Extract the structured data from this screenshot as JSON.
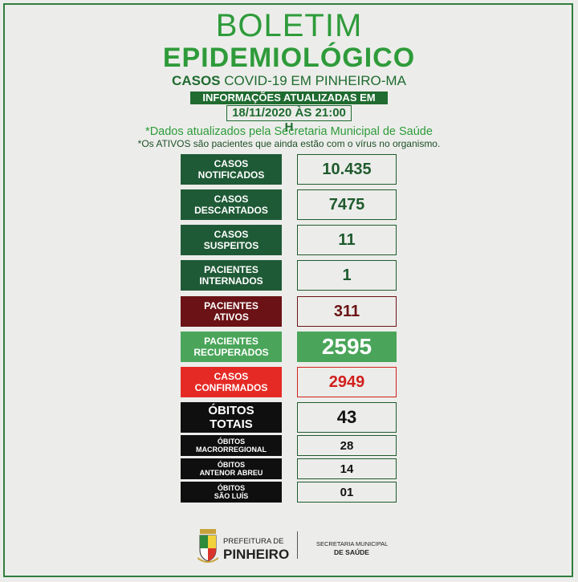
{
  "header": {
    "title_line1": "BOLETIM",
    "title_line2": "EPIDEMIOLÓGICO",
    "subtitle_bold": "CASOS",
    "subtitle_rest": " COVID-19 EM PINHEIRO-MA",
    "info_label": "INFORMAÇÕES ATUALIZADAS EM",
    "info_date": "18/11/2020 ÀS 21:00 H"
  },
  "notes": {
    "line1": "*Dados atualizados pela Secretaria Municipal de Saúde",
    "line2": "*Os ATIVOS são pacientes que ainda estão com o vírus no organismo."
  },
  "rows": [
    {
      "label1": "CASOS",
      "label2": "NOTIFICADOS",
      "value": "10.435",
      "color": "#1f5a36",
      "value_color": "#1f5a2e"
    },
    {
      "label1": "CASOS",
      "label2": "DESCARTADOS",
      "value": "7475",
      "color": "#1f5a36",
      "value_color": "#1f5a2e"
    },
    {
      "label1": "CASOS",
      "label2": "SUSPEITOS",
      "value": "11",
      "color": "#1f5a36",
      "value_color": "#1f5a2e"
    },
    {
      "label1": "PACIENTES",
      "label2": "INTERNADOS",
      "value": "1",
      "color": "#1f5a36",
      "value_color": "#1f5a2e"
    },
    {
      "label1": "PACIENTES",
      "label2": "ATIVOS",
      "value": "311",
      "color": "#6b1216",
      "value_color": "#6b1216"
    },
    {
      "label1": "PACIENTES",
      "label2": "RECUPERADOS",
      "value": "2595",
      "color": "#4aa55a",
      "value_color": "#ffffff",
      "value_bg": "#4aa55a"
    },
    {
      "label1": "CASOS",
      "label2": "CONFIRMADOS",
      "value": "2949",
      "color": "#e52a25",
      "value_color": "#d2201d"
    },
    {
      "label1": "ÓBITOS",
      "label2": "TOTAIS",
      "value": "43",
      "color": "#0f0f0f",
      "value_color": "#111111"
    },
    {
      "label1": "ÓBITOS",
      "label2": "MACRORREGIONAL",
      "value": "28",
      "color": "#0f0f0f",
      "value_color": "#111111"
    },
    {
      "label1": "ÓBITOS",
      "label2": "ANTENOR ABREU",
      "value": "14",
      "color": "#0f0f0f",
      "value_color": "#111111"
    },
    {
      "label1": "ÓBITOS",
      "label2": "SÃO LUÍS",
      "value": "01",
      "color": "#0f0f0f",
      "value_color": "#111111"
    }
  ],
  "footer": {
    "left_line1": "PREFEITURA DE",
    "left_line2": "PINHEIRO",
    "right_line1": "SECRETARIA MUNICIPAL",
    "right_line2": "DE SAÚDE"
  }
}
